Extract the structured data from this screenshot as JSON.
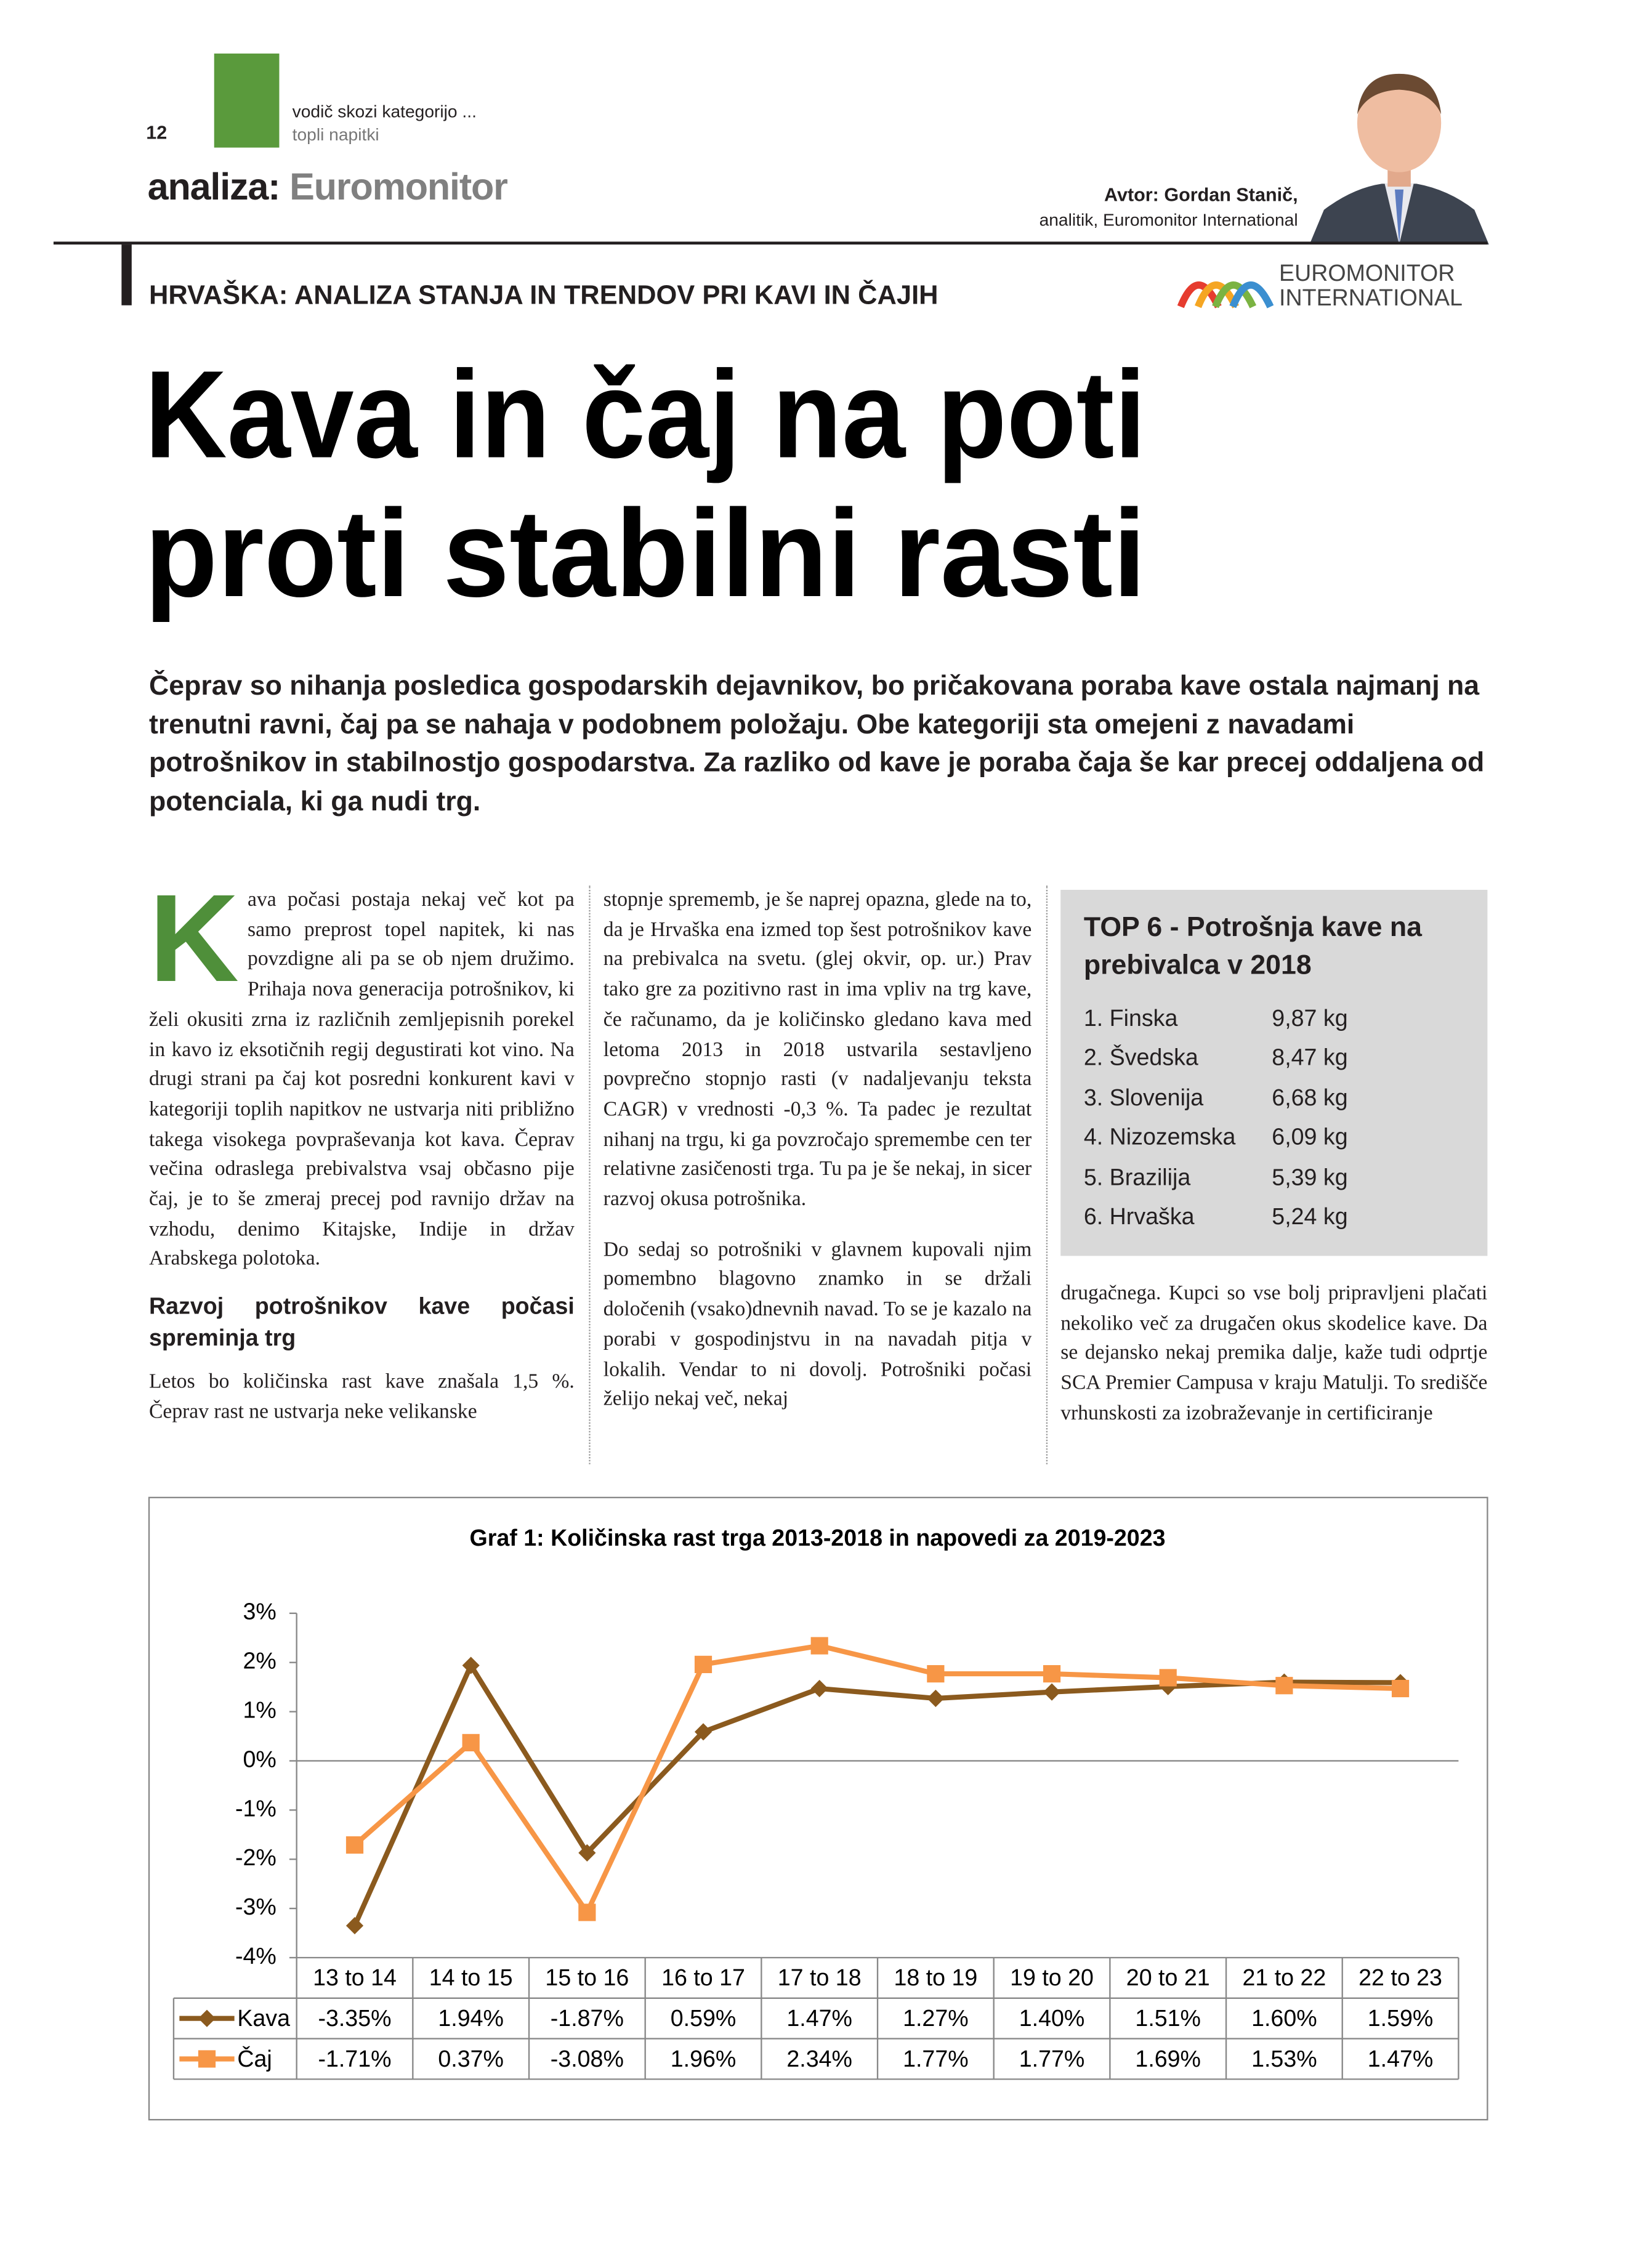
{
  "header": {
    "page_number": "12",
    "section": "vodič skozi kategorijo ...",
    "subsection": "topli napitki",
    "rubric": "analiza:",
    "rubric_source": "Euromonitor",
    "author": "Avtor: Gordan Stanič,",
    "author_role": "analitik, Euromonitor International",
    "logo_line1": "EUROMONITOR",
    "logo_line2": "INTERNATIONAL"
  },
  "kicker": "HRVAŠKA: ANALIZA STANJA IN TRENDOV PRI KAVI IN ČAJIH",
  "headline": {
    "lines": [
      "Kava in čaj na poti",
      "proti stabilni rasti"
    ]
  },
  "lead": "Čeprav so nihanja posledica gospodarskih dejavnikov, bo pričakovana poraba kave ostala najmanj na trenutni ravni, čaj pa se nahaja v podobnem položaju. Obe kategoriji sta omejeni z navadami potrošnikov in stabilnostjo gospodarstva. Za razliko od kave je poraba čaja še kar precej oddaljena od potenciala, ki ga nudi trg.",
  "article": {
    "dropcap": "K",
    "column1": {
      "paragraph1": "ava počasi postaja nekaj več kot pa samo preprost topel napitek, ki nas povzdigne ali pa se ob njem družimo. Prihaja nova generacija potrošnikov, ki želi okusiti zrna iz različnih zemljepisnih porekel in kavo iz eksotičnih regij degustirati kot vino. Na drugi strani pa čaj kot posredni konkurent kavi v kategoriji toplih napitkov ne ustvarja niti približno takega visokega povpraševanja kot kava. Čeprav večina odraslega prebivalstva vsaj občasno pije čaj, je to še zmeraj precej pod ravnijo držav na vzhodu, denimo Kitajske, Indije in držav Arabskega polotoka.",
      "subhead": "Razvoj potrošnikov kave počasi spreminja trg",
      "paragraph2": "Letos bo količinska rast kave znašala 1,5 %. Čeprav rast ne ustvarja neke velikanske"
    },
    "column2": {
      "paragraph1": "stopnje sprememb, je še naprej opazna, glede na to, da je Hrvaška ena izmed top šest potrošnikov kave na prebivalca na svetu. (glej okvir, op. ur.) Prav tako gre za pozitivno rast in ima vpliv na trg kave, če računamo, da je količinsko gledano kava med letoma 2013 in 2018 ustvarila sestavljeno povprečno stopnjo rasti (v nadaljevanju teksta CAGR) v vrednosti -0,3 %. Ta padec je rezultat nihanj na trgu, ki ga povzročajo spremembe cen ter relativne zasičenosti trga. Tu pa je še nekaj, in sicer razvoj okusa potrošnika.",
      "paragraph2": "Do sedaj so potrošniki v glavnem kupovali njim pomembno blagovno znamko in se držali določenih (vsako)dnevnih navad. To se je kazalo na porabi v gospodinjstvu in na navadah pitja v lokalih. Vendar to ni dovolj. Potrošniki počasi želijo nekaj več, nekaj"
    },
    "column3": {
      "paragraph1": "drugačnega. Kupci so vse bolj pripravljeni plačati nekoliko več za drugačen okus skodelice kave. Da se dejansko nekaj premika dalje, kaže tudi odprtje SCA Premier Campusa v kraju Matulji. To središče vrhunskosti za izobraževanje in certificiranje"
    }
  },
  "box": {
    "title": "TOP 6 - Potrošnja kave na prebivalca v 2018",
    "rows": [
      [
        "1. Finska",
        "9,87 kg"
      ],
      [
        "2. Švedska",
        "8,47 kg"
      ],
      [
        "3. Slovenija",
        "6,68 kg"
      ],
      [
        "4. Nizozemska",
        "6,09 kg"
      ],
      [
        "5. Brazilija",
        "5,39 kg"
      ],
      [
        "6. Hrvaška",
        "5,24 kg"
      ]
    ]
  },
  "chart_data": {
    "type": "line",
    "title": "Graf 1: Količinska rast trga 2013-2018 in napovedi za 2019-2023",
    "categories": [
      "13 to 14",
      "14 to 15",
      "15 to 16",
      "16 to 17",
      "17 to 18",
      "18 to 19",
      "19 to 20",
      "20 to 21",
      "21 to 22",
      "22 to 23"
    ],
    "series": [
      {
        "name": "Kava",
        "color": "#8b5a1e",
        "marker": "diamond",
        "values": [
          -3.35,
          1.94,
          -1.87,
          0.59,
          1.47,
          1.27,
          1.4,
          1.51,
          1.6,
          1.59
        ],
        "value_labels": [
          "-3.35%",
          "1.94%",
          "-1.87%",
          "0.59%",
          "1.47%",
          "1.27%",
          "1.40%",
          "1.51%",
          "1.60%",
          "1.59%"
        ]
      },
      {
        "name": "Čaj",
        "color": "#f79646",
        "marker": "square",
        "values": [
          -1.71,
          0.37,
          -3.08,
          1.96,
          2.34,
          1.77,
          1.77,
          1.69,
          1.53,
          1.47
        ],
        "value_labels": [
          "-1.71%",
          "0.37%",
          "-3.08%",
          "1.96%",
          "2.34%",
          "1.77%",
          "1.77%",
          "1.69%",
          "1.53%",
          "1.47%"
        ]
      }
    ],
    "ylim": [
      -4,
      3
    ],
    "yticks": [
      {
        "value": 3,
        "label": "3%"
      },
      {
        "value": 2,
        "label": "2%"
      },
      {
        "value": 1,
        "label": "1%"
      },
      {
        "value": 0,
        "label": "0%"
      },
      {
        "value": -1,
        "label": "-1%"
      },
      {
        "value": -2,
        "label": "-2%"
      },
      {
        "value": -3,
        "label": "-3%"
      },
      {
        "value": -4,
        "label": "-4%"
      }
    ],
    "grid": false
  }
}
